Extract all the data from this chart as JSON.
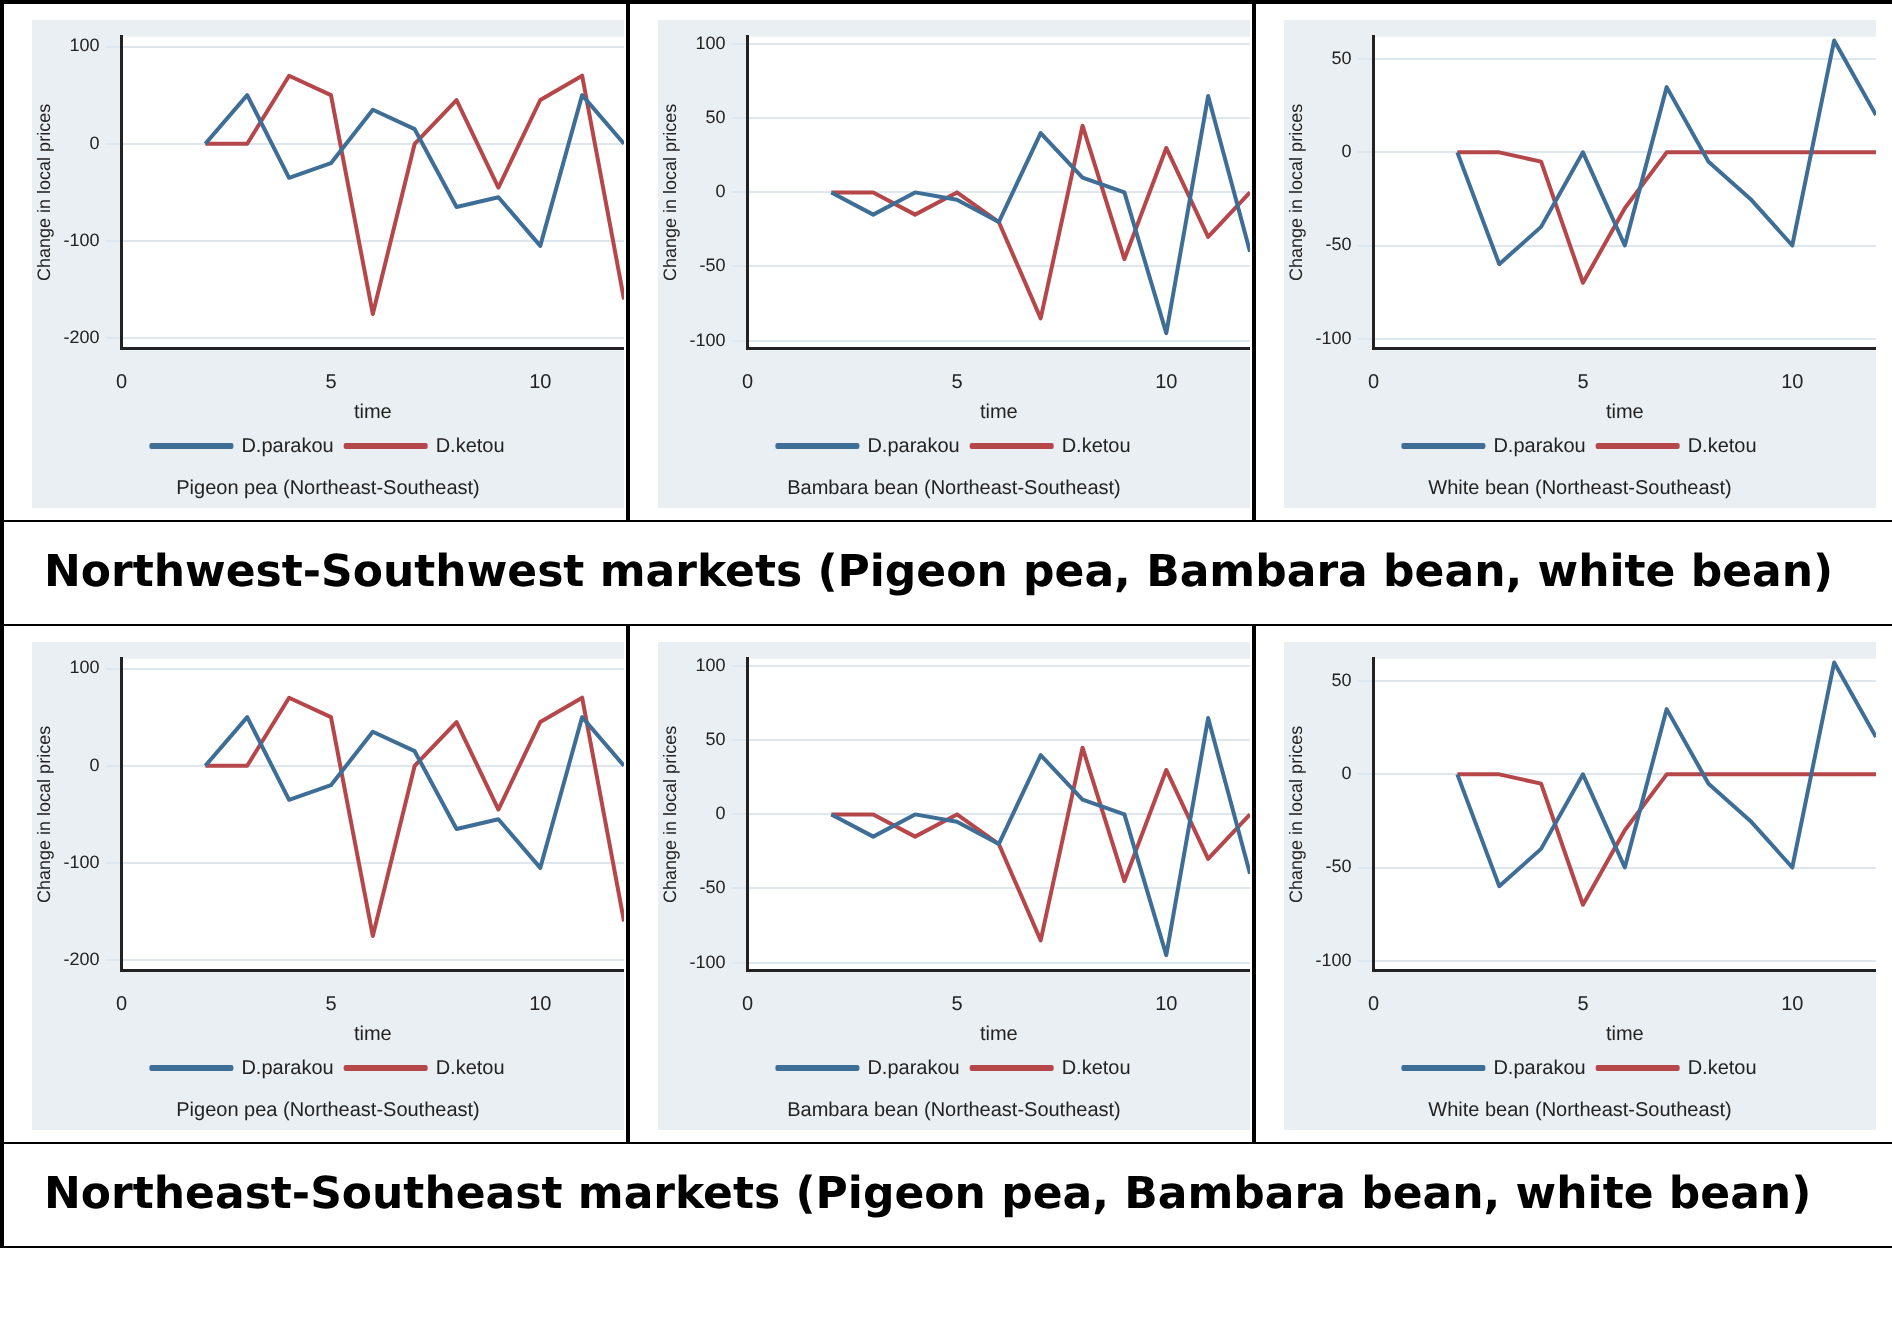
{
  "chart_data": [
    {
      "type": "line",
      "title": "Pigeon pea (Northeast-Southeast)",
      "xlabel": "time",
      "ylabel": "Change in local prices",
      "x": [
        2,
        3,
        4,
        5,
        6,
        7,
        8,
        9,
        10,
        11,
        12
      ],
      "xlim": [
        0,
        12
      ],
      "xticks": [
        0,
        5,
        10
      ],
      "ylim": [
        -210,
        110
      ],
      "yticks": [
        -200,
        -100,
        0,
        100
      ],
      "grid": "y",
      "legend": "bottom",
      "marker": "none",
      "series": [
        {
          "name": "D.parakou",
          "color": "#3e6e96",
          "values": [
            0,
            50,
            -35,
            -20,
            35,
            15,
            -65,
            -55,
            -105,
            50,
            0
          ]
        },
        {
          "name": "D.ketou",
          "color": "#b5474b",
          "values": [
            0,
            0,
            70,
            50,
            -175,
            0,
            45,
            -45,
            45,
            70,
            -160
          ]
        }
      ]
    },
    {
      "type": "line",
      "title": "Bambara bean (Northeast-Southeast)",
      "xlabel": "time",
      "ylabel": "Change in local prices",
      "x": [
        2,
        3,
        4,
        5,
        6,
        7,
        8,
        9,
        10,
        11,
        12
      ],
      "xlim": [
        0,
        12
      ],
      "xticks": [
        0,
        5,
        10
      ],
      "ylim": [
        -105,
        105
      ],
      "yticks": [
        -100,
        -50,
        0,
        50,
        100
      ],
      "grid": "y",
      "legend": "bottom",
      "marker": "none",
      "series": [
        {
          "name": "D.parakou",
          "color": "#3e6e96",
          "values": [
            0,
            -15,
            0,
            -5,
            -20,
            40,
            10,
            0,
            -95,
            65,
            -40
          ]
        },
        {
          "name": "D.ketou",
          "color": "#b5474b",
          "values": [
            0,
            0,
            -15,
            0,
            -20,
            -85,
            45,
            -45,
            30,
            -30,
            0
          ]
        }
      ]
    },
    {
      "type": "line",
      "title": "White bean (Northeast-Southeast)",
      "xlabel": "time",
      "ylabel": "Change in local prices",
      "x": [
        2,
        3,
        4,
        5,
        6,
        7,
        8,
        9,
        10,
        11,
        12
      ],
      "xlim": [
        0,
        12
      ],
      "xticks": [
        0,
        5,
        10
      ],
      "ylim": [
        -105,
        62
      ],
      "yticks": [
        -100,
        -50,
        0,
        50
      ],
      "grid": "y",
      "legend": "bottom",
      "marker": "none",
      "series": [
        {
          "name": "D.parakou",
          "color": "#3e6e96",
          "values": [
            0,
            -60,
            -40,
            0,
            -50,
            35,
            -5,
            -25,
            -50,
            60,
            20
          ]
        },
        {
          "name": "D.ketou",
          "color": "#b5474b",
          "values": [
            0,
            0,
            -5,
            -70,
            -30,
            0,
            0,
            0,
            0,
            0,
            0
          ]
        }
      ]
    },
    {
      "type": "other",
      "title": "Northwest-Southwest markets (Pigeon pea, Bambara bean, white bean)"
    },
    {
      "type": "line",
      "title": "Pigeon pea (Northeast-Southeast)",
      "xlabel": "time",
      "ylabel": "Change in local prices",
      "x": [
        2,
        3,
        4,
        5,
        6,
        7,
        8,
        9,
        10,
        11,
        12
      ],
      "xlim": [
        0,
        12
      ],
      "xticks": [
        0,
        5,
        10
      ],
      "ylim": [
        -210,
        110
      ],
      "yticks": [
        -200,
        -100,
        0,
        100
      ],
      "grid": "y",
      "legend": "bottom",
      "marker": "none",
      "series": [
        {
          "name": "D.parakou",
          "color": "#3e6e96",
          "values": [
            0,
            50,
            -35,
            -20,
            35,
            15,
            -65,
            -55,
            -105,
            50,
            0
          ]
        },
        {
          "name": "D.ketou",
          "color": "#b5474b",
          "values": [
            0,
            0,
            70,
            50,
            -175,
            0,
            45,
            -45,
            45,
            70,
            -160
          ]
        }
      ]
    },
    {
      "type": "line",
      "title": "Bambara bean (Northeast-Southeast)",
      "xlabel": "time",
      "ylabel": "Change in local prices",
      "x": [
        2,
        3,
        4,
        5,
        6,
        7,
        8,
        9,
        10,
        11,
        12
      ],
      "xlim": [
        0,
        12
      ],
      "xticks": [
        0,
        5,
        10
      ],
      "ylim": [
        -105,
        105
      ],
      "yticks": [
        -100,
        -50,
        0,
        50,
        100
      ],
      "grid": "y",
      "legend": "bottom",
      "marker": "none",
      "series": [
        {
          "name": "D.parakou",
          "color": "#3e6e96",
          "values": [
            0,
            -15,
            0,
            -5,
            -20,
            40,
            10,
            0,
            -95,
            65,
            -40
          ]
        },
        {
          "name": "D.ketou",
          "color": "#b5474b",
          "values": [
            0,
            0,
            -15,
            0,
            -20,
            -85,
            45,
            -45,
            30,
            -30,
            0
          ]
        }
      ]
    },
    {
      "type": "line",
      "title": "White bean (Northeast-Southeast)",
      "xlabel": "time",
      "ylabel": "Change in local prices",
      "x": [
        2,
        3,
        4,
        5,
        6,
        7,
        8,
        9,
        10,
        11,
        12
      ],
      "xlim": [
        0,
        12
      ],
      "xticks": [
        0,
        5,
        10
      ],
      "ylim": [
        -105,
        62
      ],
      "yticks": [
        -100,
        -50,
        0,
        50
      ],
      "grid": "y",
      "legend": "bottom",
      "marker": "none",
      "series": [
        {
          "name": "D.parakou",
          "color": "#3e6e96",
          "values": [
            0,
            -60,
            -40,
            0,
            -50,
            35,
            -5,
            -25,
            -50,
            60,
            20
          ]
        },
        {
          "name": "D.ketou",
          "color": "#b5474b",
          "values": [
            0,
            0,
            -5,
            -70,
            -30,
            0,
            0,
            0,
            0,
            0,
            0
          ]
        }
      ]
    },
    {
      "type": "other",
      "title": "Northeast-Southeast markets (Pigeon pea, Bambara bean, white bean)"
    }
  ]
}
